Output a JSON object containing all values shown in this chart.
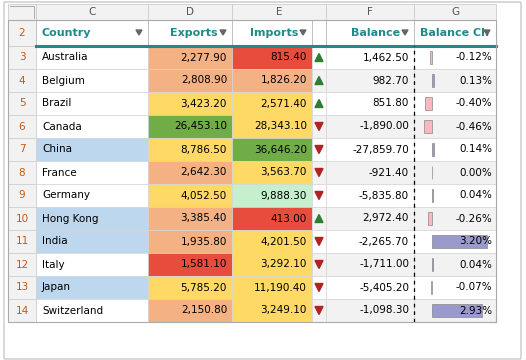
{
  "countries": [
    "Australia",
    "Belgium",
    "Brazil",
    "Canada",
    "China",
    "France",
    "Germany",
    "Hong Kong",
    "India",
    "Italy",
    "Japan",
    "Switzerland"
  ],
  "exports": [
    2277.9,
    2808.9,
    3423.2,
    26453.1,
    8786.5,
    2642.3,
    4052.5,
    3385.4,
    1935.8,
    1581.1,
    5785.2,
    2150.8
  ],
  "imports": [
    815.4,
    1826.2,
    2571.4,
    28343.1,
    36646.2,
    3563.7,
    9888.3,
    413.0,
    4201.5,
    3292.1,
    11190.4,
    3249.1
  ],
  "balance": [
    1462.5,
    982.7,
    851.8,
    -1890.0,
    -27859.7,
    -921.4,
    -5835.8,
    2972.4,
    -2265.7,
    -1711.0,
    -5405.2,
    -1098.3
  ],
  "balance_change": [
    -0.12,
    0.13,
    -0.4,
    -0.46,
    0.14,
    0.0,
    0.04,
    -0.26,
    3.2,
    0.04,
    -0.07,
    2.93
  ],
  "arrow_up": [
    true,
    true,
    true,
    false,
    false,
    false,
    false,
    true,
    false,
    false,
    false,
    false
  ],
  "country_bg": [
    "white",
    "white",
    "white",
    "white",
    "#bdd7ee",
    "white",
    "white",
    "#bdd7ee",
    "#bdd7ee",
    "white",
    "#bdd7ee",
    "white"
  ],
  "exports_bg": [
    "#f4b183",
    "#f4b183",
    "#ffd966",
    "#70ad47",
    "#ffd966",
    "#f4b183",
    "#ffd966",
    "#f4b183",
    "#f4b183",
    "#e74c3c",
    "#ffd966",
    "#f4b183"
  ],
  "imports_bg": [
    "#e74c3c",
    "#f4b183",
    "#ffd966",
    "#ffd966",
    "#70ad47",
    "#ffd966",
    "#c6efce",
    "#e74c3c",
    "#ffd966",
    "#ffd966",
    "#ffd966",
    "#ffd966"
  ],
  "balance_change_bar": [
    "#ffb6c1",
    "#9999cc",
    "#ffb6c1",
    "#ffb6c1",
    "#9999cc",
    "#9999cc",
    "#9999cc",
    "#ffb6c1",
    "#9999cc",
    "#9999cc",
    "#ffb6c1",
    "#9999cc"
  ],
  "balance_change_bar_big": [
    false,
    false,
    false,
    false,
    false,
    false,
    false,
    false,
    true,
    false,
    false,
    true
  ],
  "header_color": "#1f8a8a",
  "row_odd_bg": "#f2f2f2",
  "row_even_bg": "white"
}
